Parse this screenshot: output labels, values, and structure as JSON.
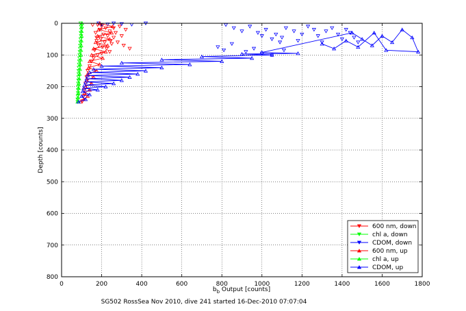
{
  "chart_data": {
    "type": "scatter",
    "title": "",
    "xlabel_main": "b",
    "xlabel_sub": "b",
    "xlabel_rest": " Output [counts]",
    "ylabel": "Depth [counts]",
    "caption": "SG502 RossSea Nov 2010, dive 241 started 16-Dec-2010 07:07:04",
    "xlim": [
      0,
      1800
    ],
    "ylim": [
      0,
      800
    ],
    "y_reversed": true,
    "x_ticks": [
      0,
      200,
      400,
      600,
      800,
      1000,
      1200,
      1400,
      1600,
      1800
    ],
    "y_ticks": [
      0,
      100,
      200,
      300,
      400,
      500,
      600,
      700,
      800
    ],
    "grid": true,
    "legend_position": "bottom-right",
    "series": [
      {
        "name": "600 nm, down",
        "color": "#ff0000",
        "marker": "triangle-down",
        "lines": false,
        "points": [
          [
            180,
            5
          ],
          [
            200,
            10
          ],
          [
            220,
            15
          ],
          [
            190,
            20
          ],
          [
            240,
            25
          ],
          [
            170,
            30
          ],
          [
            210,
            35
          ],
          [
            230,
            40
          ],
          [
            260,
            45
          ],
          [
            195,
            50
          ],
          [
            175,
            55
          ],
          [
            215,
            60
          ],
          [
            250,
            65
          ],
          [
            185,
            70
          ],
          [
            205,
            75
          ],
          [
            225,
            80
          ],
          [
            165,
            85
          ],
          [
            240,
            90
          ],
          [
            200,
            95
          ],
          [
            180,
            100
          ],
          [
            160,
            110
          ],
          [
            150,
            120
          ],
          [
            140,
            135
          ],
          [
            130,
            150
          ],
          [
            125,
            170
          ],
          [
            120,
            190
          ],
          [
            115,
            210
          ],
          [
            110,
            230
          ],
          [
            105,
            245
          ],
          [
            290,
            10
          ],
          [
            320,
            20
          ],
          [
            270,
            30
          ],
          [
            300,
            40
          ],
          [
            280,
            60
          ],
          [
            310,
            70
          ],
          [
            340,
            80
          ],
          [
            260,
            15
          ],
          [
            245,
            55
          ],
          [
            155,
            5
          ],
          [
            175,
            45
          ]
        ]
      },
      {
        "name": "chl a, down",
        "color": "#00ff00",
        "marker": "triangle-down",
        "lines": false,
        "points": [
          [
            95,
            0
          ],
          [
            97,
            10
          ],
          [
            98,
            20
          ],
          [
            96,
            30
          ],
          [
            97,
            40
          ],
          [
            95,
            50
          ],
          [
            94,
            60
          ],
          [
            93,
            70
          ],
          [
            92,
            80
          ],
          [
            91,
            90
          ],
          [
            90,
            100
          ],
          [
            89,
            110
          ],
          [
            88,
            120
          ],
          [
            87,
            130
          ],
          [
            86,
            140
          ],
          [
            85,
            150
          ],
          [
            85,
            160
          ],
          [
            84,
            170
          ],
          [
            84,
            180
          ],
          [
            83,
            190
          ],
          [
            83,
            200
          ],
          [
            82,
            210
          ],
          [
            82,
            220
          ],
          [
            81,
            230
          ],
          [
            80,
            240
          ],
          [
            80,
            248
          ]
        ]
      },
      {
        "name": "CDOM, down",
        "color": "#0000ff",
        "marker": "triangle-down",
        "lines": false,
        "points": [
          [
            260,
            0
          ],
          [
            300,
            2
          ],
          [
            350,
            4
          ],
          [
            420,
            0
          ],
          [
            820,
            5
          ],
          [
            860,
            15
          ],
          [
            900,
            25
          ],
          [
            940,
            10
          ],
          [
            980,
            30
          ],
          [
            1000,
            40
          ],
          [
            1020,
            20
          ],
          [
            1050,
            50
          ],
          [
            1070,
            35
          ],
          [
            1090,
            60
          ],
          [
            1100,
            45
          ],
          [
            1120,
            15
          ],
          [
            1160,
            25
          ],
          [
            1180,
            55
          ],
          [
            1200,
            35
          ],
          [
            1230,
            10
          ],
          [
            1260,
            20
          ],
          [
            1280,
            40
          ],
          [
            1300,
            60
          ],
          [
            1320,
            25
          ],
          [
            1350,
            15
          ],
          [
            1380,
            35
          ],
          [
            1400,
            50
          ],
          [
            1420,
            20
          ],
          [
            1440,
            30
          ],
          [
            1460,
            45
          ],
          [
            1480,
            60
          ],
          [
            780,
            75
          ],
          [
            810,
            85
          ],
          [
            850,
            65
          ],
          [
            920,
            90
          ],
          [
            960,
            80
          ],
          [
            1000,
            95
          ],
          [
            1050,
            100
          ],
          [
            1110,
            85
          ],
          [
            200,
            5
          ],
          [
            230,
            3
          ],
          [
            185,
            0
          ]
        ]
      },
      {
        "name": "600 nm, up",
        "color": "#ff0000",
        "marker": "triangle-up",
        "lines": true,
        "points": [
          [
            95,
            248
          ],
          [
            110,
            240
          ],
          [
            130,
            230
          ],
          [
            115,
            220
          ],
          [
            140,
            210
          ],
          [
            120,
            200
          ],
          [
            150,
            190
          ],
          [
            125,
            180
          ],
          [
            160,
            170
          ],
          [
            130,
            160
          ],
          [
            175,
            150
          ],
          [
            135,
            140
          ],
          [
            190,
            130
          ],
          [
            140,
            120
          ],
          [
            205,
            110
          ],
          [
            150,
            100
          ],
          [
            220,
            90
          ],
          [
            160,
            80
          ],
          [
            230,
            70
          ],
          [
            170,
            60
          ],
          [
            240,
            50
          ],
          [
            180,
            40
          ],
          [
            250,
            30
          ],
          [
            185,
            20
          ],
          [
            255,
            10
          ],
          [
            190,
            0
          ]
        ]
      },
      {
        "name": "chl a, up",
        "color": "#00ff00",
        "marker": "triangle-up",
        "lines": true,
        "points": [
          [
            80,
            248
          ],
          [
            82,
            235
          ],
          [
            84,
            220
          ],
          [
            85,
            205
          ],
          [
            86,
            190
          ],
          [
            88,
            175
          ],
          [
            90,
            160
          ],
          [
            92,
            145
          ],
          [
            93,
            130
          ],
          [
            95,
            115
          ],
          [
            96,
            100
          ],
          [
            97,
            85
          ],
          [
            98,
            70
          ],
          [
            99,
            55
          ],
          [
            100,
            40
          ],
          [
            100,
            25
          ],
          [
            101,
            10
          ],
          [
            102,
            0
          ]
        ]
      },
      {
        "name": "CDOM, up",
        "color": "#0000ff",
        "marker": "triangle-up",
        "lines": true,
        "points": [
          [
            85,
            248
          ],
          [
            120,
            240
          ],
          [
            100,
            230
          ],
          [
            140,
            225
          ],
          [
            105,
            215
          ],
          [
            180,
            210
          ],
          [
            110,
            205
          ],
          [
            220,
            200
          ],
          [
            115,
            195
          ],
          [
            260,
            190
          ],
          [
            120,
            185
          ],
          [
            300,
            180
          ],
          [
            125,
            175
          ],
          [
            340,
            170
          ],
          [
            130,
            165
          ],
          [
            380,
            160
          ],
          [
            140,
            155
          ],
          [
            420,
            150
          ],
          [
            160,
            145
          ],
          [
            500,
            140
          ],
          [
            200,
            135
          ],
          [
            640,
            130
          ],
          [
            300,
            125
          ],
          [
            800,
            120
          ],
          [
            500,
            115
          ],
          [
            950,
            110
          ],
          [
            700,
            105
          ],
          [
            1050,
            100
          ],
          [
            900,
            97
          ],
          [
            1180,
            95
          ],
          [
            1000,
            92
          ],
          [
            1450,
            30
          ],
          [
            1500,
            50
          ],
          [
            1550,
            70
          ],
          [
            1600,
            40
          ],
          [
            1650,
            60
          ],
          [
            1700,
            20
          ],
          [
            1750,
            45
          ],
          [
            1780,
            90
          ],
          [
            1620,
            85
          ],
          [
            1560,
            30
          ],
          [
            1480,
            75
          ],
          [
            1420,
            55
          ],
          [
            1360,
            80
          ],
          [
            1300,
            65
          ]
        ]
      }
    ]
  }
}
